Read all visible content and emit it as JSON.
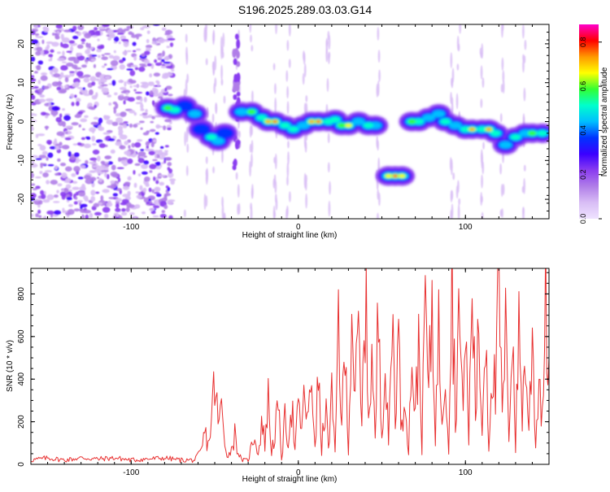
{
  "title": "S196.2025.289.03.03.G14",
  "colors": {
    "snr_line": "#e83030",
    "colormap": [
      "#ffffff",
      "#efe3ff",
      "#d8bdf5",
      "#b07ee8",
      "#8a3cf0",
      "#3a00ff",
      "#0033ff",
      "#00bfff",
      "#00ffcc",
      "#33ff33",
      "#ffff00",
      "#ff9900",
      "#ff0000",
      "#ff00cc"
    ]
  },
  "chart_data": [
    {
      "type": "heatmap",
      "name": "spectrogram",
      "title": "S196.2025.289.03.03.G14",
      "xlabel": "Height of straight line (km)",
      "ylabel": "Frequency (Hz)",
      "xlim": [
        -160,
        150
      ],
      "ylim": [
        -25,
        25
      ],
      "xticks": [
        -100,
        0,
        100
      ],
      "yticks": [
        -20,
        -10,
        0,
        10,
        20
      ],
      "colorbar": {
        "label": "Normalized spectral amplitude",
        "range": [
          0,
          0.88
        ],
        "ticks": [
          "0.0",
          "0.2",
          "0.4",
          "0.6",
          "0.8"
        ]
      },
      "ridge": [
        {
          "x": -78,
          "y": 3.5,
          "amp": 0.55
        },
        {
          "x": -74,
          "y": 3.0,
          "amp": 0.45
        },
        {
          "x": -68,
          "y": 4.0,
          "amp": 0.3
        },
        {
          "x": -62,
          "y": 2.0,
          "amp": 0.35
        },
        {
          "x": -58,
          "y": -2.0,
          "amp": 0.3
        },
        {
          "x": -52,
          "y": -4.0,
          "amp": 0.4
        },
        {
          "x": -48,
          "y": -5.0,
          "amp": 0.35
        },
        {
          "x": -44,
          "y": -3.0,
          "amp": 0.3
        },
        {
          "x": -34,
          "y": 2.5,
          "amp": 0.35
        },
        {
          "x": -28,
          "y": 2.5,
          "amp": 0.55
        },
        {
          "x": -22,
          "y": 1.0,
          "amp": 0.4
        },
        {
          "x": -18,
          "y": 0.0,
          "amp": 0.7
        },
        {
          "x": -14,
          "y": 0.0,
          "amp": 0.8
        },
        {
          "x": -8,
          "y": -1.0,
          "amp": 0.4
        },
        {
          "x": -3,
          "y": -2.0,
          "amp": 0.45
        },
        {
          "x": 3,
          "y": -1.0,
          "amp": 0.35
        },
        {
          "x": 8,
          "y": 0.0,
          "amp": 0.65
        },
        {
          "x": 12,
          "y": 0.0,
          "amp": 0.8
        },
        {
          "x": 18,
          "y": 0.0,
          "amp": 0.45
        },
        {
          "x": 22,
          "y": 0.5,
          "amp": 0.4
        },
        {
          "x": 26,
          "y": -1.0,
          "amp": 0.5
        },
        {
          "x": 30,
          "y": -1.0,
          "amp": 0.6
        },
        {
          "x": 36,
          "y": 0.0,
          "amp": 0.35
        },
        {
          "x": 42,
          "y": -1.0,
          "amp": 0.4
        },
        {
          "x": 46,
          "y": -1.0,
          "amp": 0.35
        },
        {
          "x": 54,
          "y": -14.0,
          "amp": 0.6
        },
        {
          "x": 58,
          "y": -14.0,
          "amp": 0.85
        },
        {
          "x": 62,
          "y": -14.0,
          "amp": 0.6
        },
        {
          "x": 68,
          "y": 0.0,
          "amp": 0.55
        },
        {
          "x": 72,
          "y": 0.0,
          "amp": 0.45
        },
        {
          "x": 78,
          "y": 1.0,
          "amp": 0.35
        },
        {
          "x": 84,
          "y": 2.0,
          "amp": 0.35
        },
        {
          "x": 88,
          "y": 0.0,
          "amp": 0.4
        },
        {
          "x": 94,
          "y": -1.0,
          "amp": 0.35
        },
        {
          "x": 100,
          "y": -2.0,
          "amp": 0.45
        },
        {
          "x": 104,
          "y": -2.0,
          "amp": 0.65
        },
        {
          "x": 110,
          "y": -2.0,
          "amp": 0.45
        },
        {
          "x": 114,
          "y": -2.0,
          "amp": 0.7
        },
        {
          "x": 118,
          "y": -3.0,
          "amp": 0.4
        },
        {
          "x": 124,
          "y": -6.0,
          "amp": 0.35
        },
        {
          "x": 130,
          "y": -4.0,
          "amp": 0.4
        },
        {
          "x": 136,
          "y": -3.0,
          "amp": 0.35
        },
        {
          "x": 140,
          "y": -3.0,
          "amp": 0.5
        },
        {
          "x": 146,
          "y": -3.0,
          "amp": 0.4
        }
      ]
    },
    {
      "type": "line",
      "name": "snr",
      "xlabel": "Height of straight line (km)",
      "ylabel": "SNR (10 * v/v)",
      "xlim": [
        -160,
        150
      ],
      "ylim": [
        0,
        920
      ],
      "xticks": [
        -100,
        0,
        100
      ],
      "yticks": [
        0,
        200,
        400,
        600,
        800
      ],
      "series": [
        {
          "x": [
            -160,
            -150,
            -140,
            -130,
            -120,
            -110,
            -100,
            -90,
            -80,
            -70,
            -62,
            -58,
            -56,
            -54,
            -52,
            -50,
            -48,
            -46,
            -44,
            -42,
            -40,
            -38,
            -36,
            -34,
            -30,
            -26,
            -24,
            -22,
            -20,
            -18,
            -16,
            -14,
            -12,
            -10,
            -8,
            -6,
            -4,
            -2,
            0,
            2,
            4,
            6,
            8,
            10,
            12,
            14,
            16,
            18,
            20,
            22,
            24,
            26,
            28,
            30,
            32,
            34,
            36,
            38,
            40,
            42,
            44,
            46,
            48,
            50,
            52,
            54,
            56,
            58,
            60,
            62,
            64,
            66,
            68,
            70,
            72,
            74,
            76,
            78,
            80,
            82,
            84,
            86,
            88,
            90,
            92,
            94,
            96,
            98,
            100,
            102,
            104,
            106,
            108,
            110,
            112,
            114,
            116,
            118,
            120,
            122,
            124,
            126,
            128,
            130,
            132,
            134,
            136,
            138,
            140,
            142,
            144,
            146,
            148,
            150
          ],
          "y": [
            20,
            30,
            20,
            30,
            25,
            30,
            20,
            25,
            30,
            20,
            20,
            60,
            150,
            90,
            200,
            400,
            180,
            260,
            120,
            30,
            80,
            140,
            60,
            20,
            20,
            150,
            40,
            200,
            100,
            300,
            60,
            150,
            250,
            30,
            200,
            120,
            300,
            60,
            260,
            180,
            320,
            200,
            380,
            100,
            400,
            50,
            300,
            80,
            320,
            40,
            690,
            200,
            500,
            80,
            760,
            300,
            600,
            150,
            840,
            250,
            500,
            100,
            780,
            200,
            450,
            80,
            720,
            300,
            560,
            150,
            380,
            60,
            560,
            200,
            600,
            80,
            820,
            300,
            760,
            150,
            600,
            250,
            500,
            80,
            920,
            200,
            740,
            300,
            620,
            100,
            860,
            250,
            600,
            150,
            700,
            80,
            520,
            300,
            840,
            200,
            600,
            150,
            700,
            80,
            650,
            250,
            500,
            150,
            620,
            100,
            400,
            250,
            730,
            500
          ]
        }
      ]
    }
  ]
}
